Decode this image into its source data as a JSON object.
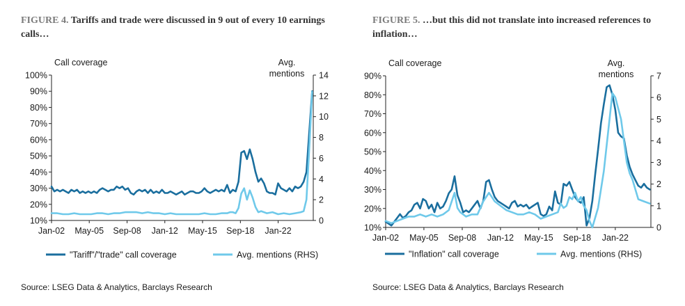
{
  "figures": [
    {
      "figure_label": "FIGURE 4.",
      "title_text": "Tariffs and trade were discussed in 9 out of every 10 earnings calls…",
      "source": "Source: LSEG Data & Analytics, Barclays Research"
    },
    {
      "figure_label": "FIGURE 5.",
      "title_text": "…but this did not translate into increased references to inflation…",
      "source": "Source: LSEG Data & Analytics, Barclays Research"
    }
  ],
  "colors": {
    "primary_series": "#1a6e9e",
    "secondary_series": "#6fc9ea",
    "axis": "#222222"
  },
  "chart_data": [
    {
      "type": "line",
      "title": "Tariffs and trade were discussed in 9 out of every 10 earnings calls…",
      "ylabel_left": "Call coverage",
      "ylabel_right": "Avg. mentions",
      "x_ticks": [
        "Jan-02",
        "May-05",
        "Sep-08",
        "Jan-12",
        "May-15",
        "Sep-18",
        "Jan-22"
      ],
      "y_left_ticks": [
        "10%",
        "20%",
        "30%",
        "40%",
        "50%",
        "60%",
        "70%",
        "80%",
        "90%",
        "100%"
      ],
      "y_right_ticks": [
        "0",
        "2",
        "4",
        "6",
        "8",
        "10",
        "12",
        "14"
      ],
      "ylim_left": [
        10,
        100
      ],
      "ylim_right": [
        0,
        14
      ],
      "xlim": [
        2002.0,
        2025.1
      ],
      "grid": false,
      "legend_position": "bottom",
      "series": [
        {
          "name": "\"Tariff\"/\"trade\" call coverage",
          "axis": "left",
          "x": [
            2002.0,
            2002.25,
            2002.5,
            2002.75,
            2003.0,
            2003.25,
            2003.5,
            2003.75,
            2004.0,
            2004.25,
            2004.5,
            2004.75,
            2005.0,
            2005.25,
            2005.5,
            2005.75,
            2006.0,
            2006.25,
            2006.5,
            2006.75,
            2007.0,
            2007.25,
            2007.5,
            2007.75,
            2008.0,
            2008.25,
            2008.5,
            2008.75,
            2009.0,
            2009.25,
            2009.5,
            2009.75,
            2010.0,
            2010.25,
            2010.5,
            2010.75,
            2011.0,
            2011.25,
            2011.5,
            2011.75,
            2012.0,
            2012.25,
            2012.5,
            2012.75,
            2013.0,
            2013.25,
            2013.5,
            2013.75,
            2014.0,
            2014.25,
            2014.5,
            2014.75,
            2015.0,
            2015.25,
            2015.5,
            2015.75,
            2016.0,
            2016.25,
            2016.5,
            2016.75,
            2017.0,
            2017.25,
            2017.5,
            2017.75,
            2018.0,
            2018.25,
            2018.5,
            2018.75,
            2019.0,
            2019.25,
            2019.5,
            2019.75,
            2020.0,
            2020.25,
            2020.5,
            2020.75,
            2021.0,
            2021.25,
            2021.5,
            2021.75,
            2022.0,
            2022.25,
            2022.5,
            2022.75,
            2023.0,
            2023.25,
            2023.5,
            2023.75,
            2024.0,
            2024.25,
            2024.5,
            2024.75,
            2025.0
          ],
          "values": [
            31,
            28,
            29,
            28,
            29,
            28,
            27,
            29,
            28,
            29,
            27,
            28,
            27,
            28,
            27,
            28,
            27,
            29,
            30,
            29,
            28,
            29,
            29,
            31,
            30,
            31,
            29,
            30,
            27,
            26,
            28,
            29,
            28,
            29,
            27,
            29,
            27,
            28,
            27,
            29,
            27,
            27,
            28,
            27,
            26,
            27,
            28,
            26,
            27,
            28,
            28,
            27,
            27,
            28,
            30,
            28,
            27,
            28,
            29,
            28,
            29,
            28,
            32,
            27,
            29,
            28,
            34,
            52,
            53,
            48,
            54,
            48,
            40,
            34,
            36,
            33,
            28,
            27,
            27,
            26,
            33,
            30,
            29,
            28,
            30,
            28,
            31,
            30,
            31,
            34,
            40,
            65,
            90
          ]
        },
        {
          "name": "Avg. mentions (RHS)",
          "axis": "right",
          "x": [
            2002.0,
            2002.5,
            2003.0,
            2003.5,
            2004.0,
            2004.5,
            2005.0,
            2005.5,
            2006.0,
            2006.5,
            2007.0,
            2007.5,
            2008.0,
            2008.5,
            2009.0,
            2009.5,
            2010.0,
            2010.5,
            2011.0,
            2011.5,
            2012.0,
            2012.5,
            2013.0,
            2013.5,
            2014.0,
            2014.5,
            2015.0,
            2015.5,
            2016.0,
            2016.5,
            2017.0,
            2017.5,
            2017.75,
            2018.0,
            2018.25,
            2018.5,
            2018.75,
            2019.0,
            2019.25,
            2019.5,
            2019.75,
            2020.0,
            2020.25,
            2020.5,
            2021.0,
            2021.5,
            2022.0,
            2022.5,
            2023.0,
            2023.5,
            2024.0,
            2024.25,
            2024.5,
            2024.75,
            2025.0
          ],
          "values": [
            0.7,
            0.7,
            0.6,
            0.6,
            0.7,
            0.6,
            0.6,
            0.6,
            0.7,
            0.7,
            0.6,
            0.7,
            0.7,
            0.8,
            0.8,
            0.8,
            0.7,
            0.8,
            0.7,
            0.7,
            0.6,
            0.7,
            0.6,
            0.6,
            0.6,
            0.6,
            0.6,
            0.7,
            0.6,
            0.6,
            0.7,
            0.7,
            0.8,
            0.8,
            0.7,
            1.2,
            2.6,
            3.1,
            2.0,
            2.9,
            2.2,
            1.3,
            0.8,
            0.9,
            0.7,
            0.8,
            0.6,
            0.7,
            0.6,
            0.7,
            0.8,
            0.9,
            2.0,
            7.0,
            12.4
          ]
        }
      ]
    },
    {
      "type": "line",
      "title": "…but this did not translate into increased references to inflation…",
      "ylabel_left": "Call coverage",
      "ylabel_right": "Avg. mentions",
      "x_ticks": [
        "Jan-02",
        "May-05",
        "Sep-08",
        "Jan-12",
        "May-15",
        "Sep-18",
        "Jan-22"
      ],
      "y_left_ticks": [
        "10%",
        "20%",
        "30%",
        "40%",
        "50%",
        "60%",
        "70%",
        "80%",
        "90%"
      ],
      "y_right_ticks": [
        "0",
        "1",
        "2",
        "3",
        "4",
        "5",
        "6",
        "7"
      ],
      "ylim_left": [
        10,
        90
      ],
      "ylim_right": [
        0,
        7
      ],
      "xlim": [
        2002.0,
        2025.1
      ],
      "grid": false,
      "legend_position": "bottom",
      "series": [
        {
          "name": "\"Inflation\" call coverage",
          "axis": "left",
          "x": [
            2002.0,
            2002.25,
            2002.5,
            2002.75,
            2003.0,
            2003.25,
            2003.5,
            2003.75,
            2004.0,
            2004.25,
            2004.5,
            2004.75,
            2005.0,
            2005.25,
            2005.5,
            2005.75,
            2006.0,
            2006.25,
            2006.5,
            2006.75,
            2007.0,
            2007.25,
            2007.5,
            2007.75,
            2008.0,
            2008.25,
            2008.5,
            2008.75,
            2009.0,
            2009.25,
            2009.5,
            2009.75,
            2010.0,
            2010.25,
            2010.5,
            2010.75,
            2011.0,
            2011.25,
            2011.5,
            2011.75,
            2012.0,
            2012.25,
            2012.5,
            2012.75,
            2013.0,
            2013.25,
            2013.5,
            2013.75,
            2014.0,
            2014.25,
            2014.5,
            2014.75,
            2015.0,
            2015.25,
            2015.5,
            2015.75,
            2016.0,
            2016.25,
            2016.5,
            2016.75,
            2017.0,
            2017.25,
            2017.5,
            2017.75,
            2018.0,
            2018.25,
            2018.5,
            2018.75,
            2019.0,
            2019.25,
            2019.5,
            2019.75,
            2020.0,
            2020.25,
            2020.5,
            2020.75,
            2021.0,
            2021.25,
            2021.5,
            2021.75,
            2022.0,
            2022.25,
            2022.5,
            2022.75,
            2023.0,
            2023.25,
            2023.5,
            2023.75,
            2024.0,
            2024.25,
            2024.5,
            2024.75,
            2025.0
          ],
          "values": [
            13,
            12,
            11,
            13,
            15,
            17,
            15,
            16,
            18,
            19,
            22,
            23,
            20,
            25,
            24,
            20,
            22,
            18,
            23,
            20,
            21,
            24,
            28,
            30,
            37,
            27,
            23,
            18,
            19,
            18,
            20,
            22,
            24,
            20,
            24,
            34,
            35,
            30,
            26,
            24,
            23,
            22,
            21,
            20,
            23,
            24,
            21,
            22,
            21,
            22,
            20,
            21,
            22,
            23,
            17,
            16,
            17,
            21,
            19,
            29,
            23,
            22,
            33,
            32,
            34,
            30,
            26,
            24,
            23,
            26,
            11,
            15,
            24,
            38,
            51,
            65,
            75,
            84,
            85,
            80,
            72,
            60,
            58,
            57,
            48,
            42,
            38,
            35,
            32,
            31,
            33,
            31,
            30
          ],
          "x_note": "values shown only approximately"
        },
        {
          "name": "Avg. mentions (RHS)",
          "axis": "right",
          "x": [
            2002.0,
            2002.5,
            2003.0,
            2003.5,
            2004.0,
            2004.5,
            2005.0,
            2005.5,
            2006.0,
            2006.5,
            2007.0,
            2007.5,
            2008.0,
            2008.25,
            2008.5,
            2009.0,
            2009.5,
            2010.0,
            2010.5,
            2011.0,
            2011.5,
            2012.0,
            2012.5,
            2013.0,
            2013.5,
            2014.0,
            2014.5,
            2015.0,
            2015.5,
            2016.0,
            2016.5,
            2017.0,
            2017.25,
            2017.5,
            2017.75,
            2018.0,
            2018.25,
            2018.5,
            2018.75,
            2019.0,
            2019.25,
            2019.5,
            2019.75,
            2020.0,
            2020.5,
            2021.0,
            2021.25,
            2021.5,
            2021.75,
            2022.0,
            2022.5,
            2023.0,
            2023.25,
            2023.5,
            2024.0,
            2024.5,
            2025.0
          ],
          "values": [
            0.3,
            0.2,
            0.3,
            0.4,
            0.5,
            0.5,
            0.6,
            0.5,
            0.6,
            0.5,
            0.6,
            0.8,
            1.6,
            0.9,
            0.7,
            0.5,
            0.6,
            0.6,
            1.2,
            1.6,
            1.2,
            1.0,
            0.8,
            0.7,
            0.6,
            0.6,
            0.7,
            0.6,
            0.4,
            0.5,
            0.6,
            0.7,
            1.1,
            0.9,
            1.0,
            1.4,
            1.3,
            1.6,
            1.2,
            1.4,
            1.0,
            0.8,
            0.3,
            0.0,
            0.9,
            2.6,
            3.8,
            5.0,
            6.2,
            6.0,
            5.0,
            3.0,
            2.5,
            2.2,
            1.3,
            1.2,
            1.1
          ]
        }
      ]
    }
  ]
}
